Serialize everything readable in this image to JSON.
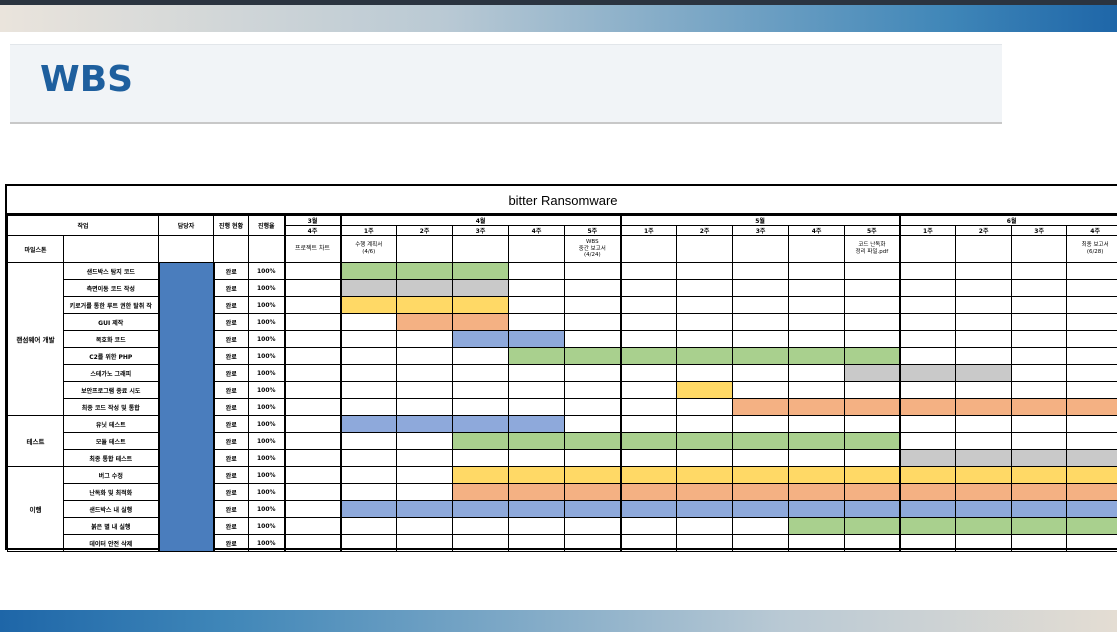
{
  "page": {
    "title": "WBS"
  },
  "sheet": {
    "title": "bitter Ransomware",
    "headers": {
      "task": "작업",
      "owner": "담당자",
      "status": "진행 현황",
      "progress": "진행율"
    },
    "months": [
      {
        "label": "3월",
        "weeks": [
          "4주"
        ]
      },
      {
        "label": "4월",
        "weeks": [
          "1주",
          "2주",
          "3주",
          "4주",
          "5주"
        ]
      },
      {
        "label": "5월",
        "weeks": [
          "1주",
          "2주",
          "3주",
          "4주",
          "5주"
        ]
      },
      {
        "label": "6월",
        "weeks": [
          "1주",
          "2주",
          "3주",
          "4주"
        ]
      }
    ],
    "milestone_label": "마일스톤",
    "milestones": [
      {
        "week": 0,
        "text": "프로젝트 차트"
      },
      {
        "week": 1,
        "text": "수행 계획서\n(4/6)"
      },
      {
        "week": 5,
        "text": "WBS\n중간 보고서\n(4/24)"
      },
      {
        "week": 10,
        "text": "코드 난독화\n정리 파일.pdf"
      },
      {
        "week": 14,
        "text": "최종 보고서\n(6/28)"
      }
    ],
    "colors": {
      "green": "#a9d08e",
      "gray": "#c9c9c9",
      "yellow": "#ffd966",
      "orange": "#f4b183",
      "blue": "#8ea9db",
      "owner": "#4a7dbd"
    },
    "groups": [
      {
        "name": "랜섬웨어 개발",
        "tasks": [
          {
            "name": "샌드박스 탐지 코드",
            "status": "완료",
            "progress": "100%",
            "start": 1,
            "end": 3,
            "color": "green"
          },
          {
            "name": "측면이동 코드 작성",
            "status": "완료",
            "progress": "100%",
            "start": 1,
            "end": 3,
            "color": "gray"
          },
          {
            "name": "키로거를 통한 루트 권한 탈취 작",
            "status": "완료",
            "progress": "100%",
            "start": 1,
            "end": 3,
            "color": "yellow"
          },
          {
            "name": "GUI 제작",
            "status": "완료",
            "progress": "100%",
            "start": 2,
            "end": 3,
            "color": "orange"
          },
          {
            "name": "복호화 코드",
            "status": "완료",
            "progress": "100%",
            "start": 3,
            "end": 4,
            "color": "blue"
          },
          {
            "name": "C2를 위한 PHP",
            "status": "완료",
            "progress": "100%",
            "start": 4,
            "end": 10,
            "color": "green"
          },
          {
            "name": "스테가노 그래피",
            "status": "완료",
            "progress": "100%",
            "start": 10,
            "end": 12,
            "color": "gray"
          },
          {
            "name": "보안프로그램 종료 시도",
            "status": "완료",
            "progress": "100%",
            "start": 7,
            "end": 7,
            "color": "yellow"
          },
          {
            "name": "최종 코드 작성 및 통합",
            "status": "완료",
            "progress": "100%",
            "start": 8,
            "end": 15,
            "color": "orange"
          }
        ]
      },
      {
        "name": "테스트",
        "tasks": [
          {
            "name": "유닛 테스트",
            "status": "완료",
            "progress": "100%",
            "start": 1,
            "end": 4,
            "color": "blue"
          },
          {
            "name": "모듈 테스트",
            "status": "완료",
            "progress": "100%",
            "start": 3,
            "end": 10,
            "color": "green"
          },
          {
            "name": "최종 통합 테스트",
            "status": "완료",
            "progress": "100%",
            "start": 11,
            "end": 15,
            "color": "gray"
          }
        ]
      },
      {
        "name": "이행",
        "tasks": [
          {
            "name": "버그 수정",
            "status": "완료",
            "progress": "100%",
            "start": 3,
            "end": 15,
            "color": "yellow"
          },
          {
            "name": "난독화 및 최적화",
            "status": "완료",
            "progress": "100%",
            "start": 3,
            "end": 15,
            "color": "orange"
          },
          {
            "name": "샌드박스 내 실행",
            "status": "완료",
            "progress": "100%",
            "start": 1,
            "end": 15,
            "color": "blue"
          },
          {
            "name": "붉은 별 내 실행",
            "status": "완료",
            "progress": "100%",
            "start": 9,
            "end": 15,
            "color": "green"
          },
          {
            "name": "데이터 안전 삭제",
            "status": "완료",
            "progress": "100%",
            "start": 15,
            "end": 15,
            "color": "gray"
          }
        ]
      }
    ]
  }
}
